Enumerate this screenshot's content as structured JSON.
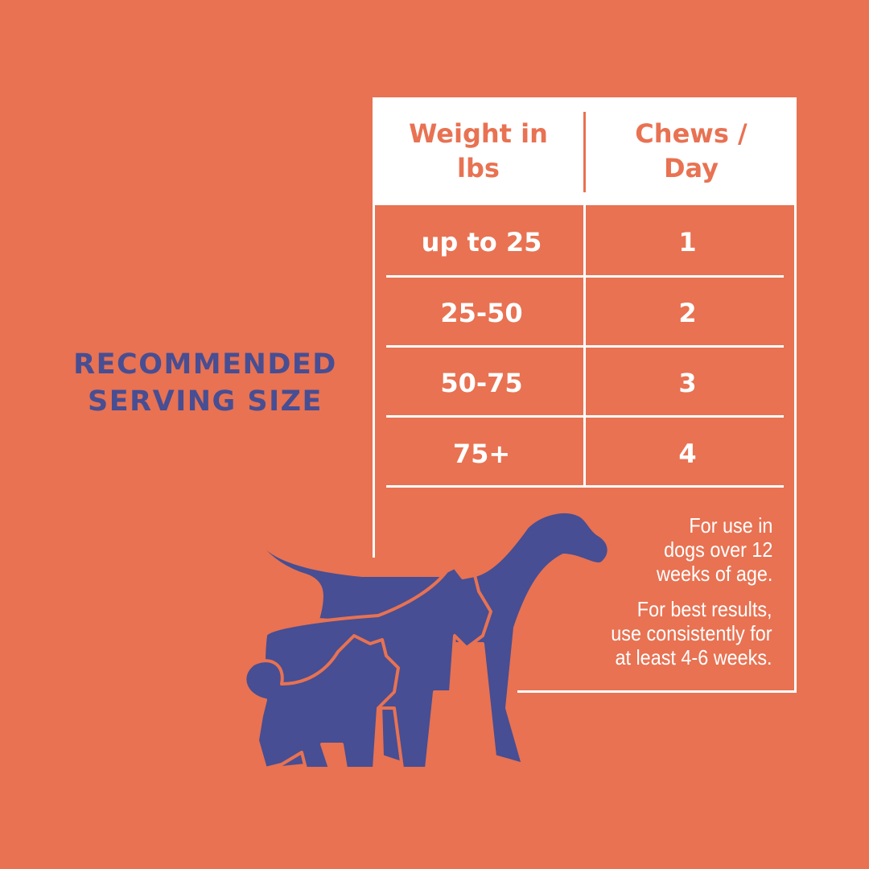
{
  "title": {
    "line1": "RECOMMENDED",
    "line2": "SERVING SIZE"
  },
  "table": {
    "headers": [
      "Weight in\nlbs",
      "Chews /\nDay"
    ],
    "header_lines": [
      [
        "Weight in",
        "lbs"
      ],
      [
        "Chews /",
        "Day"
      ]
    ],
    "rows": [
      {
        "weight": "up to 25",
        "chews": "1"
      },
      {
        "weight": "25-50",
        "chews": "2"
      },
      {
        "weight": "50-75",
        "chews": "3"
      },
      {
        "weight": "75+",
        "chews": "4"
      }
    ]
  },
  "notes": {
    "note1": [
      "For use in",
      "dogs over 12",
      "weeks of age."
    ],
    "note2": [
      "For best results,",
      "use consistently for",
      "at least 4-6 weeks."
    ]
  },
  "colors": {
    "background": "#E87252",
    "accent": "#474E93",
    "header_bg": "#FFFFFF"
  },
  "illustration": "dog-silhouettes-icon"
}
